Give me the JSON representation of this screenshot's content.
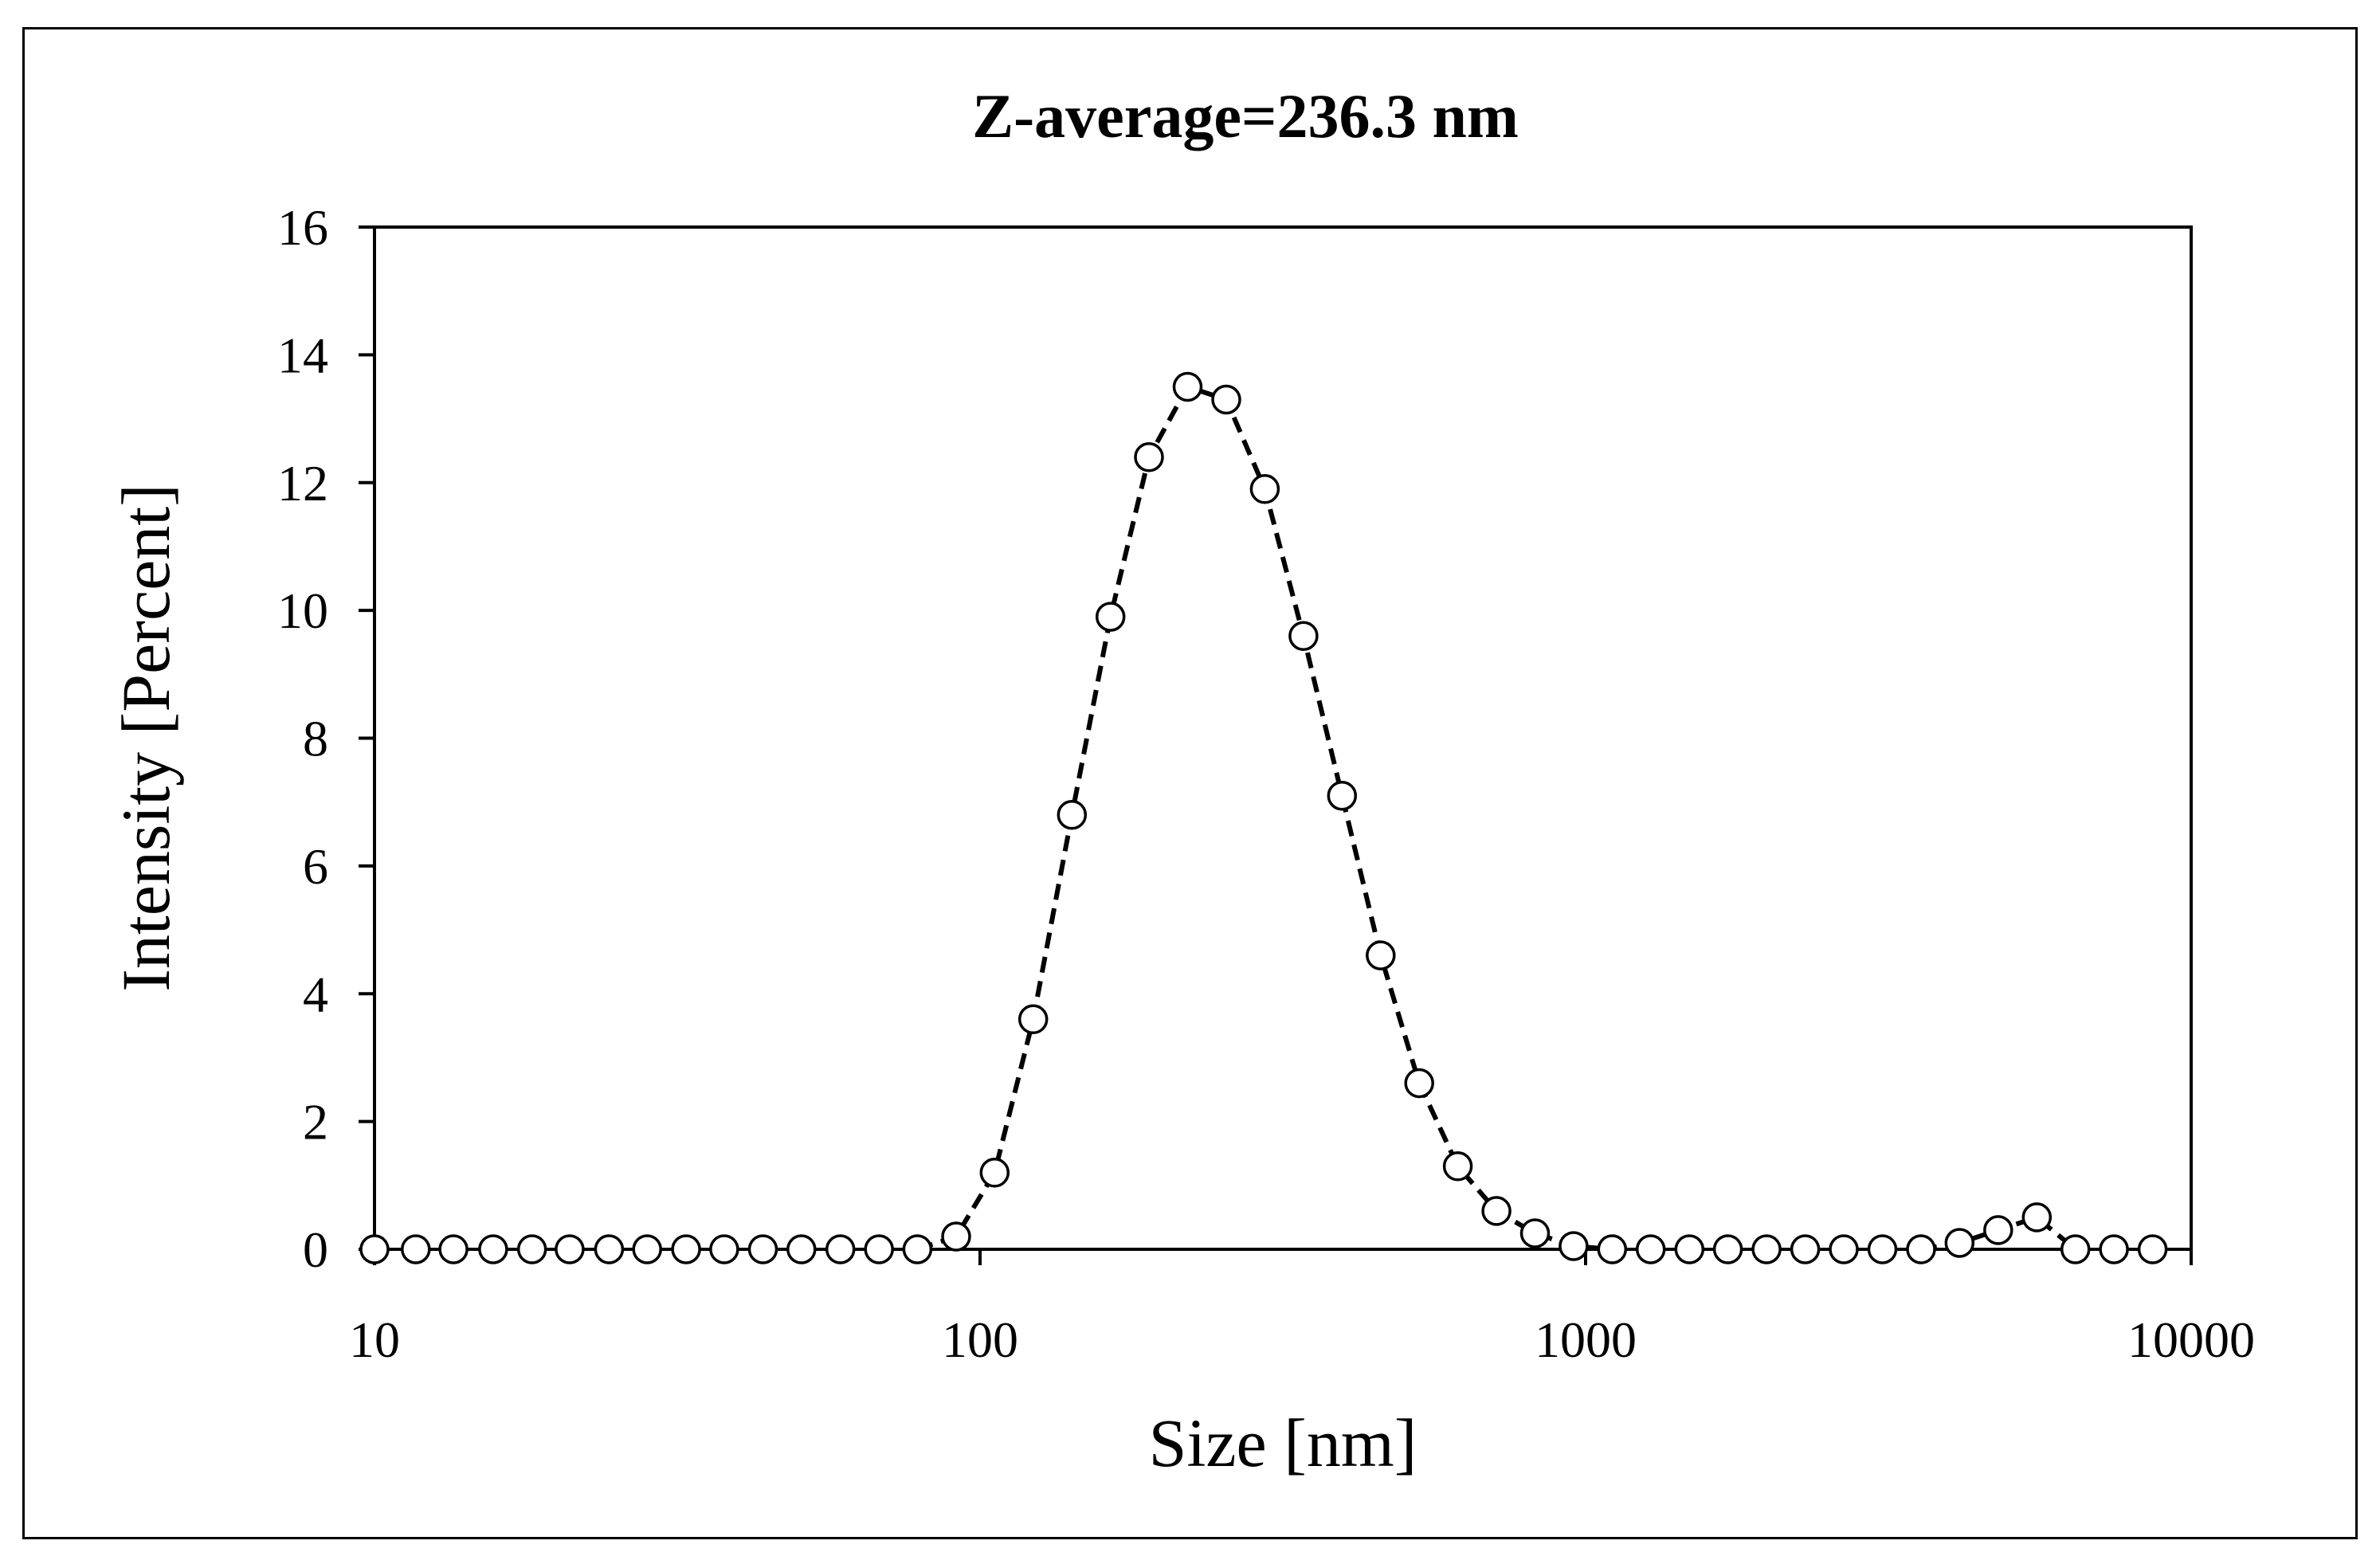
{
  "chart_data": {
    "type": "scatter",
    "title": "Z-average=236.3 nm",
    "xlabel": "Size [nm]",
    "ylabel": "Intensity [Percent]",
    "x_scale": "log",
    "xlim": [
      10,
      10000
    ],
    "ylim": [
      0,
      16
    ],
    "x_ticks": [
      "10",
      "100",
      "1000",
      "10000"
    ],
    "y_ticks": [
      "0",
      "2",
      "4",
      "6",
      "8",
      "10",
      "12",
      "14",
      "16"
    ],
    "grid": false,
    "legend": "none",
    "line_style": "dashed",
    "marker": "open-circle",
    "color": "#000000",
    "series": [
      {
        "x": [
          10.0,
          11.7,
          13.5,
          15.7,
          18.2,
          21.0,
          24.4,
          28.2,
          32.7,
          37.8,
          43.8,
          50.7,
          58.8,
          68.1,
          78.8,
          91.3,
          105.7,
          122.4,
          141.8,
          164.2,
          190.1,
          220.2,
          255.0,
          295.3,
          342.0,
          396.1,
          458.7,
          531.2,
          615.1,
          712.4,
          825.0,
          955.4,
          1106.0,
          1281.0,
          1484.0,
          1718.0,
          1990.0,
          2305.0,
          2669.0,
          3091.0,
          3580.0,
          4145.0,
          4801.0,
          5560.0,
          6439.0,
          7456.0,
          8635.0
        ],
        "y": [
          0,
          0,
          0,
          0,
          0,
          0,
          0,
          0,
          0,
          0,
          0,
          0,
          0,
          0,
          0,
          0.2,
          1.2,
          3.6,
          6.8,
          9.9,
          12.4,
          13.5,
          13.3,
          11.9,
          9.6,
          7.1,
          4.6,
          2.6,
          1.3,
          0.6,
          0.25,
          0.05,
          0,
          0,
          0,
          0,
          0,
          0,
          0,
          0,
          0,
          0.1,
          0.3,
          0.5,
          0,
          0,
          0
        ]
      }
    ]
  }
}
